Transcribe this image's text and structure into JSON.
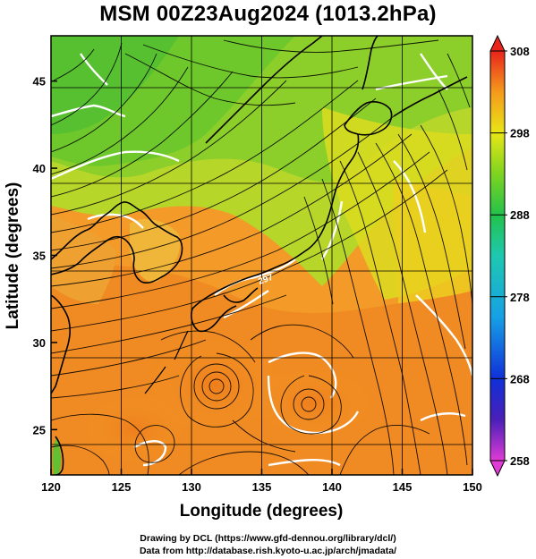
{
  "title": "MSM 00Z23Aug2024 (1013.2hPa)",
  "xlabel": "Longitude (degrees)",
  "ylabel": "Latitude  (degrees)",
  "credits": [
    "Drawing by DCL (https://www.gfd-dennou.org/library/dcl/)",
    "Data from http://database.rish.kyoto-u.ac.jp/arch/jmadata/"
  ],
  "chart_data": {
    "type": "heatmap",
    "x_range": [
      120,
      150
    ],
    "y_range": [
      22.4,
      47.6
    ],
    "x_ticks": [
      120,
      125,
      130,
      135,
      140,
      145,
      150
    ],
    "y_ticks": [
      25,
      30,
      35,
      40,
      45
    ],
    "grid": true,
    "colorbar": {
      "range": [
        258,
        308
      ],
      "ticks": [
        258,
        268,
        278,
        288,
        298,
        308
      ],
      "extend": "both"
    },
    "contour_labels": [
      "297"
    ]
  }
}
